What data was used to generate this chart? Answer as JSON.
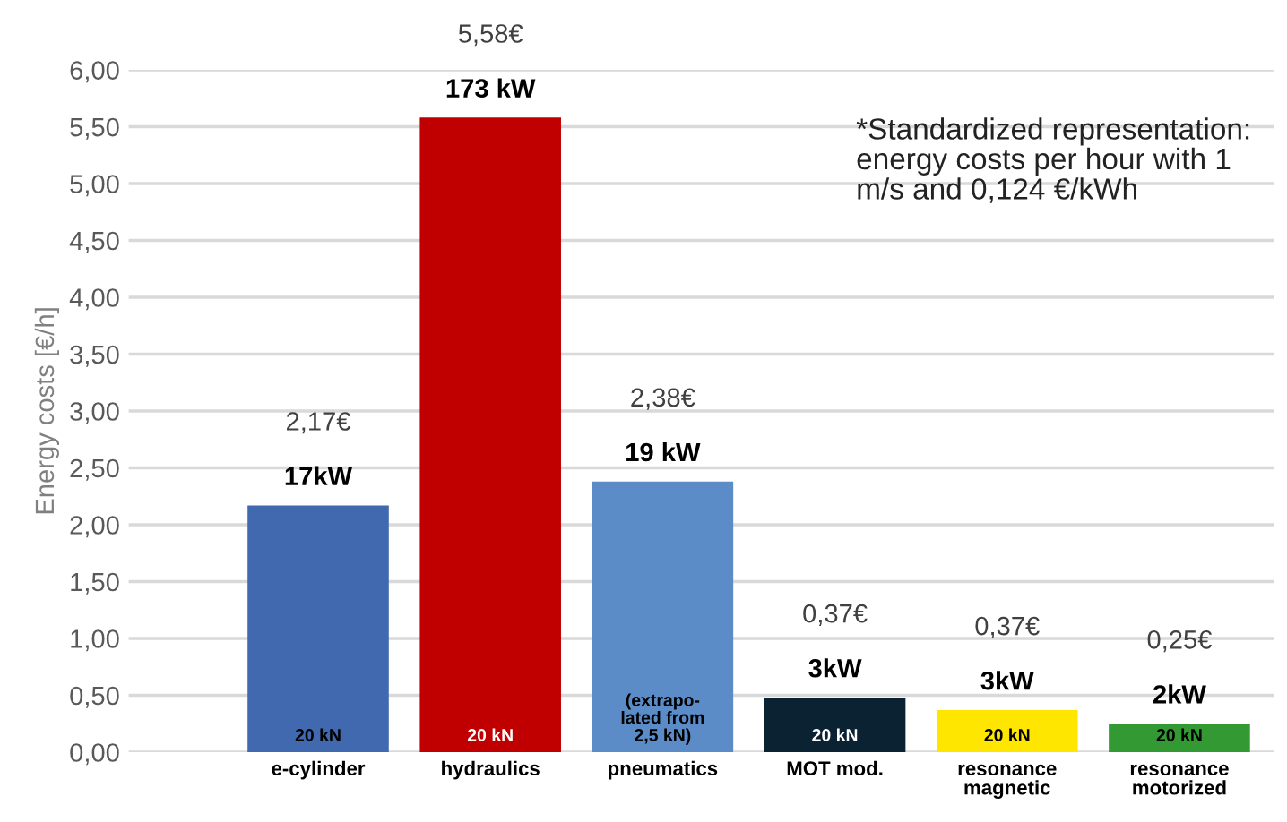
{
  "chart_data": {
    "type": "bar",
    "ylabel": "Energy costs [€/h]",
    "categories": [
      "e-cylinder",
      "hydraulics",
      "pneumatics",
      "MOT mod.",
      "resonance\nmagnetic",
      "resonance\nmotorized"
    ],
    "values": [
      2.17,
      5.58,
      2.38,
      0.48,
      0.37,
      0.25
    ],
    "colors": [
      "#4169b0",
      "#c00000",
      "#5b8cc8",
      "#0b2233",
      "#ffe600",
      "#339933"
    ],
    "ylim": [
      0,
      6
    ],
    "yticks": [
      {
        "value": 0,
        "label": "0,00"
      },
      {
        "value": 0.5,
        "label": "0,50"
      },
      {
        "value": 1,
        "label": "1,00"
      },
      {
        "value": 1.5,
        "label": "1,50"
      },
      {
        "value": 2,
        "label": "2,00"
      },
      {
        "value": 2.5,
        "label": "2,50"
      },
      {
        "value": 3,
        "label": "3,00"
      },
      {
        "value": 3.5,
        "label": "3,50"
      },
      {
        "value": 4,
        "label": "4,00"
      },
      {
        "value": 4.5,
        "label": "4,50"
      },
      {
        "value": 5,
        "label": "5,00"
      },
      {
        "value": 5.5,
        "label": "5,50"
      },
      {
        "value": 6,
        "label": "6,00"
      }
    ],
    "grid": "y",
    "annotations": [
      "*Standardized representation:\nenergy costs per hour with 1\nm/s and 0,124 €/kWh",
      "2,17€",
      "5,58€",
      "2,38€",
      "0,37€",
      "0,37€",
      "0,25€",
      "17kW",
      "173 kW",
      "19 kW",
      "3kW",
      "3kW",
      "2kW",
      "20 kN",
      "20 kN",
      "(extrapo-\nlated from\n2,5 kN)",
      "20 kN",
      "20 kN",
      "20 kN"
    ]
  }
}
